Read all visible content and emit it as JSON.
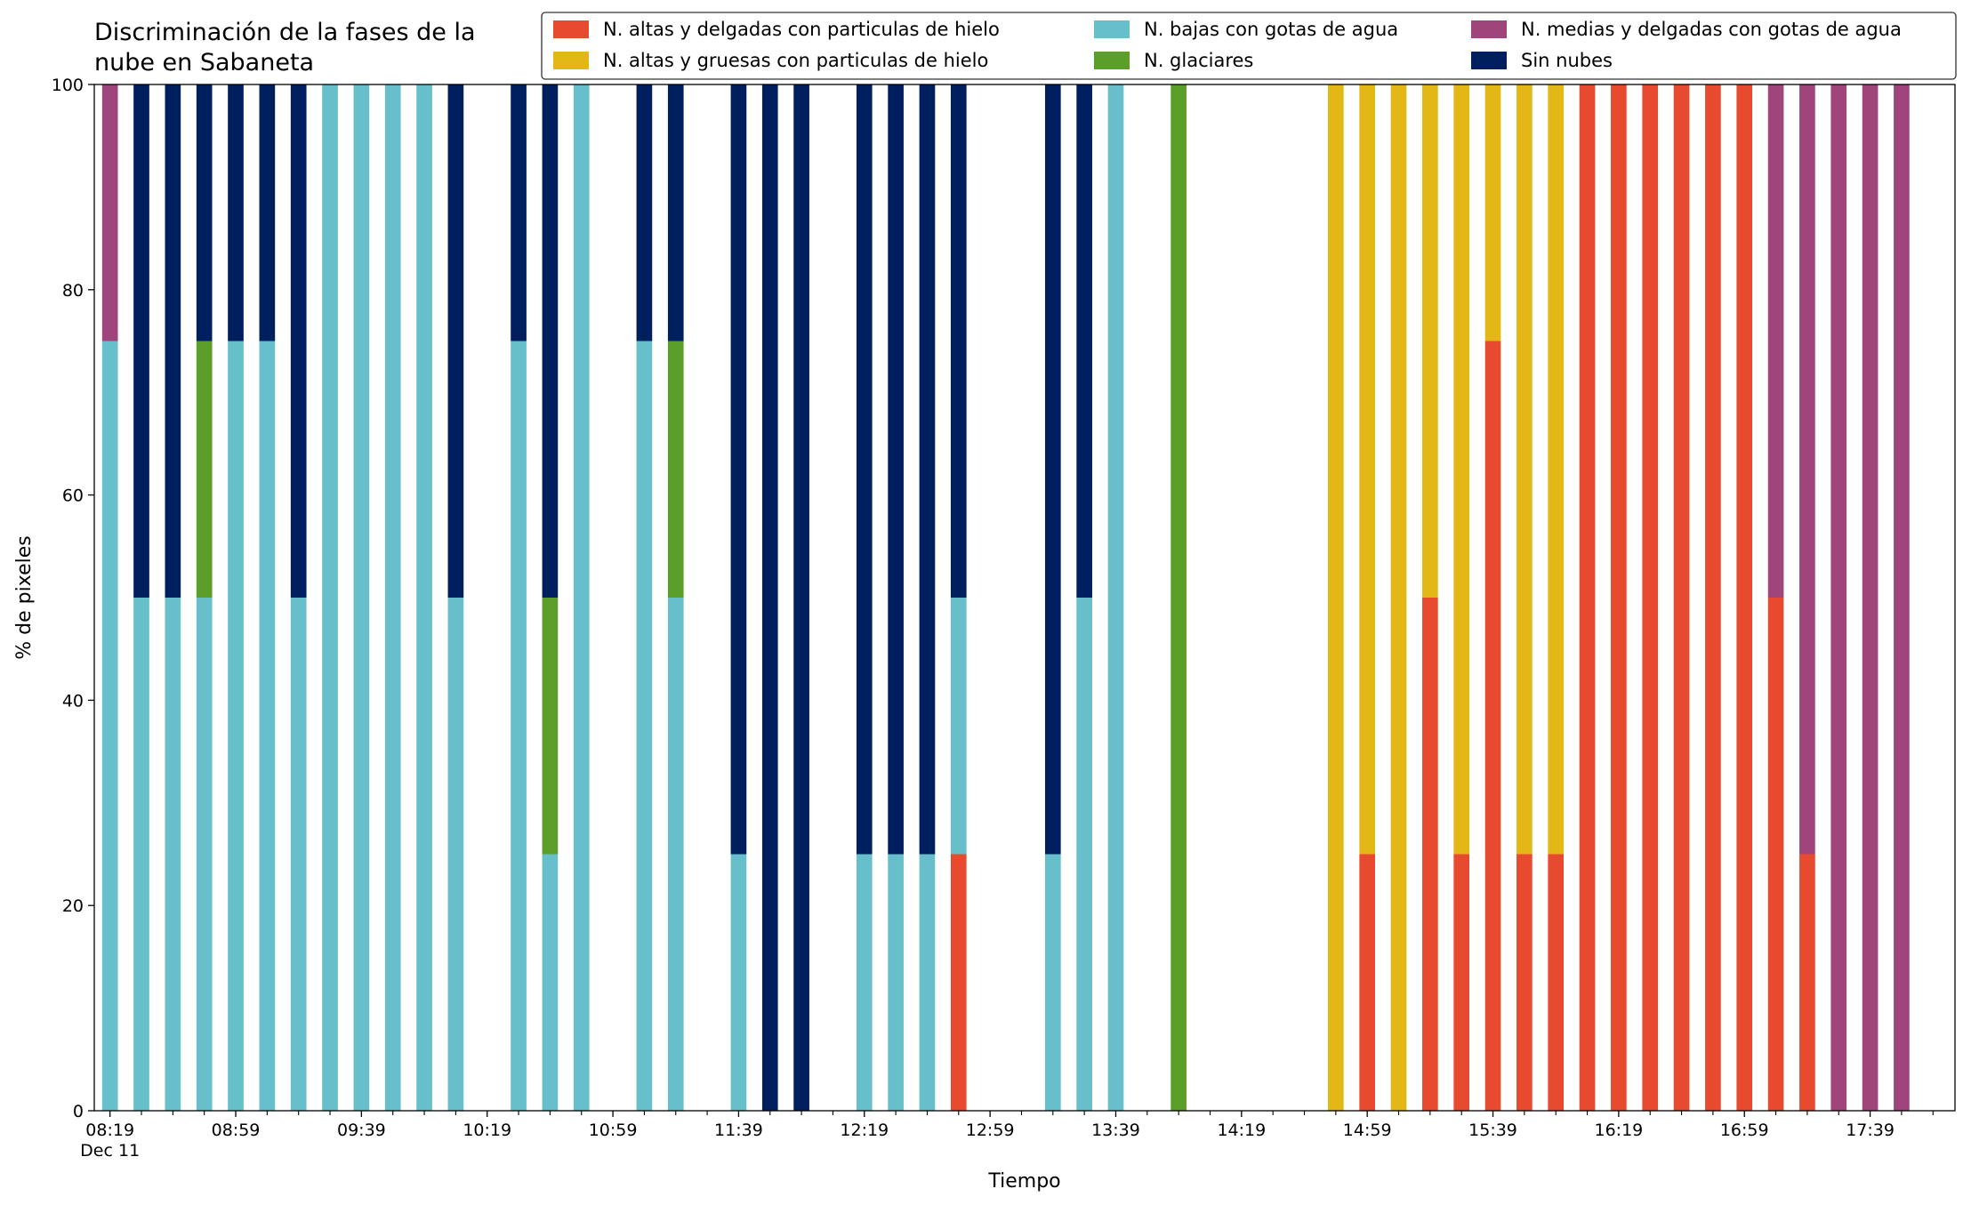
{
  "chart_data": {
    "type": "bar",
    "stacked": true,
    "title": "Discriminación de la fases de la nube en Sabaneta",
    "x_label": "Tiempo",
    "y_label": "% de pixeles",
    "x_date_label": "Dec 11",
    "x": [
      "08:19",
      "08:29",
      "08:39",
      "08:49",
      "08:59",
      "09:09",
      "09:19",
      "09:29",
      "09:39",
      "09:49",
      "09:59",
      "10:09",
      "10:29",
      "10:39",
      "10:49",
      "11:09",
      "11:19",
      "11:39",
      "11:49",
      "11:59",
      "12:19",
      "12:29",
      "12:39",
      "12:49",
      "13:19",
      "13:29",
      "13:39",
      "13:59",
      "14:49",
      "14:59",
      "15:09",
      "15:19",
      "15:29",
      "15:39",
      "15:49",
      "15:59",
      "16:09",
      "16:19",
      "16:29",
      "16:39",
      "16:49",
      "16:59",
      "17:09",
      "17:19",
      "17:29",
      "17:39",
      "17:49"
    ],
    "series": [
      {
        "name": "N. altas y delgadas con particulas de hielo",
        "color": "#e84a2f",
        "values": [
          0,
          0,
          0,
          0,
          0,
          0,
          0,
          0,
          0,
          0,
          0,
          0,
          0,
          0,
          0,
          0,
          0,
          0,
          0,
          0,
          0,
          0,
          0,
          25,
          0,
          0,
          0,
          0,
          0,
          25,
          0,
          50,
          25,
          75,
          25,
          25,
          100,
          100,
          100,
          100,
          100,
          100,
          50,
          25,
          0,
          0,
          0
        ]
      },
      {
        "name": "N. altas y gruesas con particulas de hielo",
        "color": "#e3b716",
        "values": [
          0,
          0,
          0,
          0,
          0,
          0,
          0,
          0,
          0,
          0,
          0,
          0,
          0,
          0,
          0,
          0,
          0,
          0,
          0,
          0,
          0,
          0,
          0,
          0,
          0,
          0,
          0,
          0,
          100,
          75,
          100,
          50,
          75,
          25,
          75,
          75,
          0,
          0,
          0,
          0,
          0,
          0,
          0,
          0,
          0,
          0,
          0
        ]
      },
      {
        "name": "N. bajas con gotas de agua",
        "color": "#66bfca",
        "values": [
          75,
          50,
          50,
          50,
          75,
          75,
          50,
          100,
          100,
          100,
          100,
          50,
          75,
          25,
          100,
          75,
          50,
          25,
          0,
          0,
          25,
          25,
          25,
          25,
          25,
          50,
          100,
          0,
          0,
          0,
          0,
          0,
          0,
          0,
          0,
          0,
          0,
          0,
          0,
          0,
          0,
          0,
          0,
          0,
          0,
          0,
          0
        ]
      },
      {
        "name": "N. glaciares",
        "color": "#5c9e2a",
        "values": [
          0,
          0,
          0,
          25,
          0,
          0,
          0,
          0,
          0,
          0,
          0,
          0,
          0,
          25,
          0,
          0,
          25,
          0,
          0,
          0,
          0,
          0,
          0,
          0,
          0,
          0,
          0,
          100,
          0,
          0,
          0,
          0,
          0,
          0,
          0,
          0,
          0,
          0,
          0,
          0,
          0,
          0,
          0,
          0,
          0,
          0,
          0
        ]
      },
      {
        "name": "N. medias y delgadas con gotas de agua",
        "color": "#a0457b",
        "values": [
          25,
          0,
          0,
          0,
          0,
          0,
          0,
          0,
          0,
          0,
          0,
          0,
          0,
          0,
          0,
          0,
          0,
          0,
          0,
          0,
          0,
          0,
          0,
          0,
          0,
          0,
          0,
          0,
          0,
          0,
          0,
          0,
          0,
          0,
          0,
          0,
          0,
          0,
          0,
          0,
          0,
          0,
          50,
          75,
          100,
          100,
          100
        ]
      },
      {
        "name": "Sin nubes",
        "color": "#001f5e",
        "values": [
          0,
          50,
          50,
          25,
          25,
          25,
          50,
          0,
          0,
          0,
          0,
          50,
          25,
          50,
          0,
          25,
          25,
          75,
          100,
          100,
          75,
          75,
          75,
          50,
          75,
          50,
          0,
          0,
          0,
          0,
          0,
          0,
          0,
          0,
          0,
          0,
          0,
          0,
          0,
          0,
          0,
          0,
          0,
          0,
          0,
          0,
          0
        ]
      }
    ],
    "xlim": [
      "08:14",
      "18:06"
    ],
    "xticks": [
      "08:19",
      "08:59",
      "09:39",
      "10:19",
      "10:59",
      "11:39",
      "12:19",
      "12:59",
      "13:39",
      "14:19",
      "14:59",
      "15:39",
      "16:19",
      "16:59",
      "17:39"
    ],
    "xminorticks": [
      "08:29",
      "08:39",
      "08:49",
      "09:09",
      "09:19",
      "09:29",
      "09:49",
      "09:59",
      "10:09",
      "10:29",
      "10:39",
      "10:49",
      "11:09",
      "11:19",
      "11:29",
      "11:49",
      "11:59",
      "12:09",
      "12:29",
      "12:39",
      "12:49",
      "13:09",
      "13:19",
      "13:29",
      "13:49",
      "13:59",
      "14:09",
      "14:29",
      "14:39",
      "14:49",
      "15:09",
      "15:19",
      "15:29",
      "15:49",
      "15:59",
      "16:09",
      "16:29",
      "16:39",
      "16:49",
      "17:09",
      "17:19",
      "17:29",
      "17:49",
      "17:59"
    ],
    "ylim": [
      0,
      100
    ],
    "yticks": [
      0,
      20,
      40,
      60,
      80,
      100
    ],
    "grid": false,
    "legend": "upper right"
  }
}
